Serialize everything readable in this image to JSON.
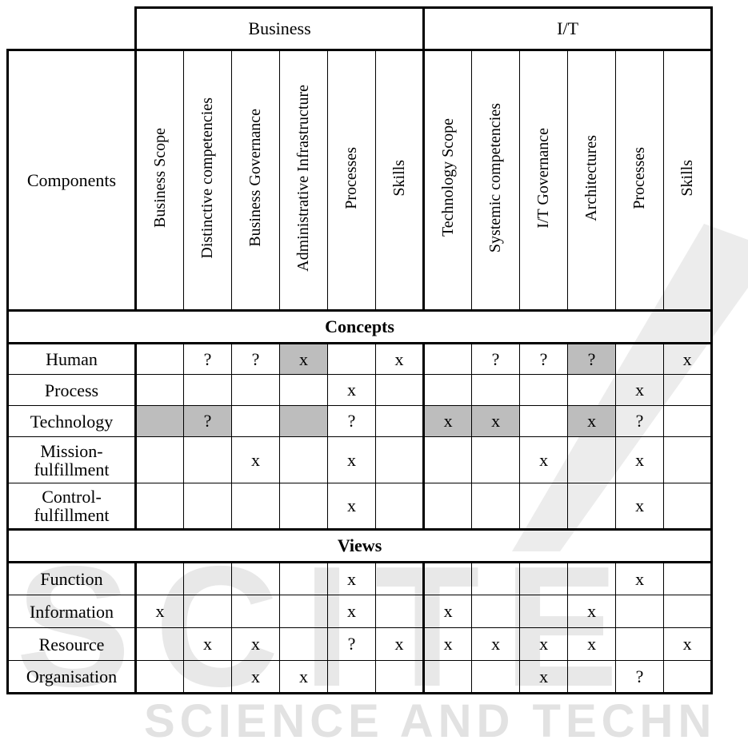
{
  "header": {
    "groups": [
      {
        "label": "Business",
        "span": 6
      },
      {
        "label": "I/T",
        "span": 6
      }
    ],
    "corner_label": "Components",
    "columns": [
      "Business Scope",
      "Distinctive competencies",
      "Business Governance",
      "Administrative Infrastructure",
      "Processes",
      "Skills",
      "Technology Scope",
      "Systemic competencies",
      "I/T Governance",
      "Architectures",
      "Processes",
      "Skills"
    ]
  },
  "shade_color": "#bdbdbd",
  "sections": [
    {
      "title": "Concepts",
      "rows": [
        {
          "label": "Human",
          "cells": [
            "",
            "?",
            "?",
            "x",
            "",
            "x",
            "",
            "?",
            "?",
            "?",
            "",
            "x"
          ],
          "shaded": [
            3,
            9
          ]
        },
        {
          "label": "Process",
          "cells": [
            "",
            "",
            "",
            "",
            "x",
            "",
            "",
            "",
            "",
            "",
            "x",
            ""
          ],
          "shaded": []
        },
        {
          "label": "Technology",
          "cells": [
            "",
            "?",
            "",
            "",
            "?",
            "",
            "x",
            "x",
            "",
            "x",
            "?",
            ""
          ],
          "shaded": [
            0,
            1,
            3,
            6,
            7,
            9
          ]
        },
        {
          "label": "Mission-\nfulfillment",
          "cells": [
            "",
            "",
            "x",
            "",
            "x",
            "",
            "",
            "",
            "x",
            "",
            "x",
            ""
          ],
          "shaded": []
        },
        {
          "label": "Control-\nfulfillment",
          "cells": [
            "",
            "",
            "",
            "",
            "x",
            "",
            "",
            "",
            "",
            "",
            "x",
            ""
          ],
          "shaded": []
        }
      ]
    },
    {
      "title": "Views",
      "rows": [
        {
          "label": "Function",
          "cells": [
            "",
            "",
            "",
            "",
            "x",
            "",
            "",
            "",
            "",
            "",
            "x",
            ""
          ],
          "shaded": []
        },
        {
          "label": "Information",
          "cells": [
            "x",
            "",
            "",
            "",
            "x",
            "",
            "x",
            "",
            "",
            "x",
            "",
            ""
          ],
          "shaded": []
        },
        {
          "label": "Resource",
          "cells": [
            "",
            "x",
            "x",
            "",
            "?",
            "x",
            "x",
            "x",
            "x",
            "x",
            "",
            "x"
          ],
          "shaded": []
        },
        {
          "label": "Organisation",
          "cells": [
            "",
            "",
            "x",
            "x",
            "",
            "",
            "",
            "",
            "x",
            "",
            "?",
            ""
          ],
          "shaded": []
        }
      ]
    }
  ],
  "watermark": {
    "large_text": "SCITE",
    "small_text": "SCIENCE AND TECHN",
    "color": "#e4e4e4"
  }
}
